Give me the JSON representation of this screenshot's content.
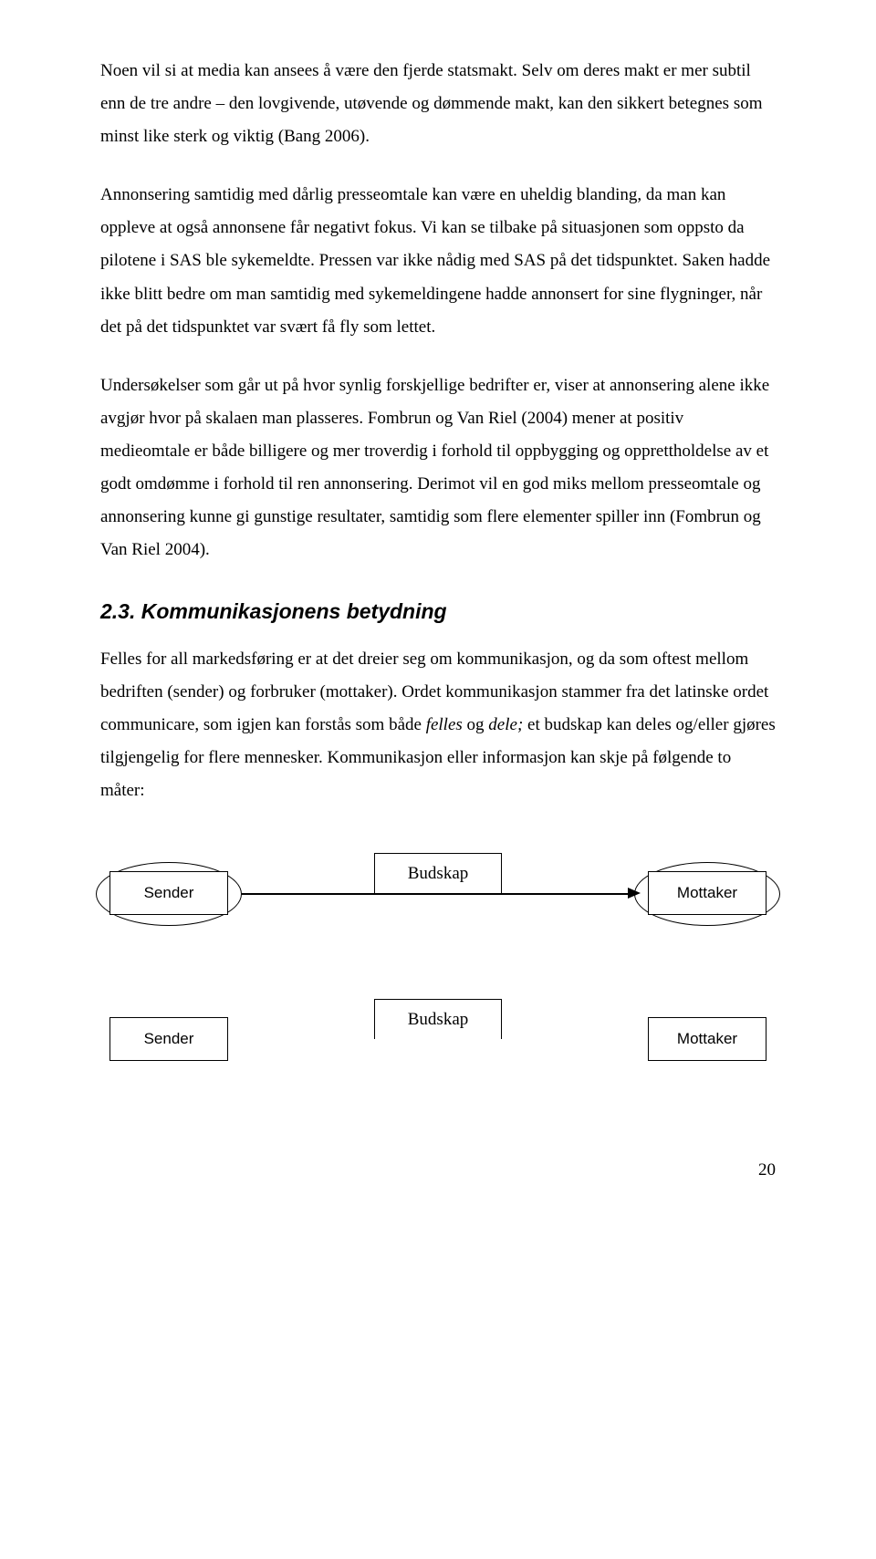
{
  "paragraphs": {
    "p1": "Noen vil si at media kan ansees å være den fjerde statsmakt. Selv om deres makt er mer subtil enn de tre andre – den lovgivende, utøvende og dømmende makt, kan den sikkert betegnes som minst like sterk og viktig (Bang 2006).",
    "p2": "Annonsering samtidig med dårlig presseomtale kan være en uheldig blanding, da man kan oppleve at også annonsene får negativt fokus. Vi kan se tilbake på situasjonen som oppsto da pilotene i SAS ble sykemeldte. Pressen var ikke nådig med SAS på det tidspunktet. Saken hadde ikke blitt bedre om man samtidig med sykemeldingene hadde annonsert for sine flygninger, når det på det tidspunktet var svært få fly som lettet.",
    "p3": "Undersøkelser som går ut på hvor synlig forskjellige bedrifter er, viser at annonsering alene ikke avgjør hvor på skalaen man plasseres. Fombrun og Van Riel (2004) mener at positiv medieomtale er både billigere og mer troverdig i forhold til oppbygging og opprettholdelse av et godt omdømme i forhold til ren annonsering. Derimot vil en god miks mellom presseomtale og annonsering kunne gi gunstige resultater, samtidig som flere elementer spiller inn (Fombrun og Van Riel 2004).",
    "p4_pre": "Felles for all markedsføring er at det dreier seg om kommunikasjon, og da som oftest mellom bedriften (sender) og forbruker (mottaker). Ordet kommunikasjon stammer fra det latinske ordet communicare, som igjen kan forstås som både ",
    "p4_it1": "felles",
    "p4_mid": " og ",
    "p4_it2": "dele;",
    "p4_post": " et budskap kan deles og/eller gjøres tilgjengelig for flere mennesker. Kommunikasjon eller informasjon kan skje på følgende to måter:"
  },
  "heading": "2.3. Kommunikasjonens betydning",
  "diagram": {
    "sender": "Sender",
    "budskap": "Budskap",
    "mottaker": "Mottaker"
  },
  "page_number": "20"
}
